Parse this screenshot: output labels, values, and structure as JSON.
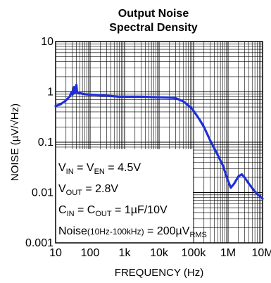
{
  "chart_data": {
    "type": "line",
    "title_line1": "Output Noise",
    "title_line2": "Spectral Density",
    "xlabel": "FREQUENCY (Hz)",
    "ylabel": "NOISE (µV/√Hz)",
    "xscale": "log",
    "yscale": "log",
    "xlim": [
      10,
      10000000
    ],
    "ylim": [
      0.001,
      10
    ],
    "grid": true,
    "x_ticks": [
      "10",
      "100",
      "1k",
      "10k",
      "100k",
      "1M",
      "10M"
    ],
    "y_ticks": [
      "10",
      "1",
      "0.1",
      "0.01",
      "0.001"
    ],
    "series": [
      {
        "color": "#1f2fd6",
        "points": [
          [
            10,
            0.52
          ],
          [
            14,
            0.57
          ],
          [
            20,
            0.68
          ],
          [
            26,
            0.82
          ],
          [
            29,
            1.0
          ],
          [
            31,
            0.88
          ],
          [
            34,
            1.25
          ],
          [
            36,
            0.95
          ],
          [
            38,
            1.1
          ],
          [
            40,
            1.38
          ],
          [
            42,
            0.98
          ],
          [
            46,
            0.95
          ],
          [
            55,
            0.93
          ],
          [
            70,
            0.9
          ],
          [
            100,
            0.88
          ],
          [
            150,
            0.87
          ],
          [
            300,
            0.84
          ],
          [
            700,
            0.8
          ],
          [
            1000,
            0.8
          ],
          [
            3000,
            0.8
          ],
          [
            10000,
            0.78
          ],
          [
            20000,
            0.77
          ],
          [
            30000,
            0.75
          ],
          [
            50000,
            0.65
          ],
          [
            80000,
            0.5
          ],
          [
            100000,
            0.42
          ],
          [
            150000,
            0.28
          ],
          [
            200000,
            0.2
          ],
          [
            300000,
            0.11
          ],
          [
            500000,
            0.056
          ],
          [
            700000,
            0.035
          ],
          [
            1000000,
            0.017
          ],
          [
            1200000,
            0.0125
          ],
          [
            1500000,
            0.015
          ],
          [
            2000000,
            0.021
          ],
          [
            2500000,
            0.023
          ],
          [
            3000000,
            0.02
          ],
          [
            4000000,
            0.015
          ],
          [
            6000000,
            0.0105
          ],
          [
            10000000,
            0.0075
          ]
        ]
      }
    ],
    "annotations": [
      {
        "parts": [
          [
            "V",
            ""
          ],
          [
            "IN",
            "sub"
          ],
          [
            " = V",
            ""
          ],
          [
            "EN",
            "sub"
          ],
          [
            " = 4.5V",
            ""
          ]
        ]
      },
      {
        "parts": [
          [
            "V",
            ""
          ],
          [
            "OUT",
            "sub"
          ],
          [
            " = 2.8V",
            ""
          ]
        ]
      },
      {
        "parts": [
          [
            "C",
            ""
          ],
          [
            "IN",
            "sub"
          ],
          [
            " = C",
            ""
          ],
          [
            "OUT",
            "sub"
          ],
          [
            " = 1µF/10V",
            ""
          ]
        ]
      },
      {
        "parts": [
          [
            "Noise",
            ""
          ],
          [
            "(10Hz-100kHz)",
            "small"
          ],
          [
            " = 200µV",
            ""
          ],
          [
            "RMS",
            "sub"
          ]
        ]
      }
    ]
  }
}
